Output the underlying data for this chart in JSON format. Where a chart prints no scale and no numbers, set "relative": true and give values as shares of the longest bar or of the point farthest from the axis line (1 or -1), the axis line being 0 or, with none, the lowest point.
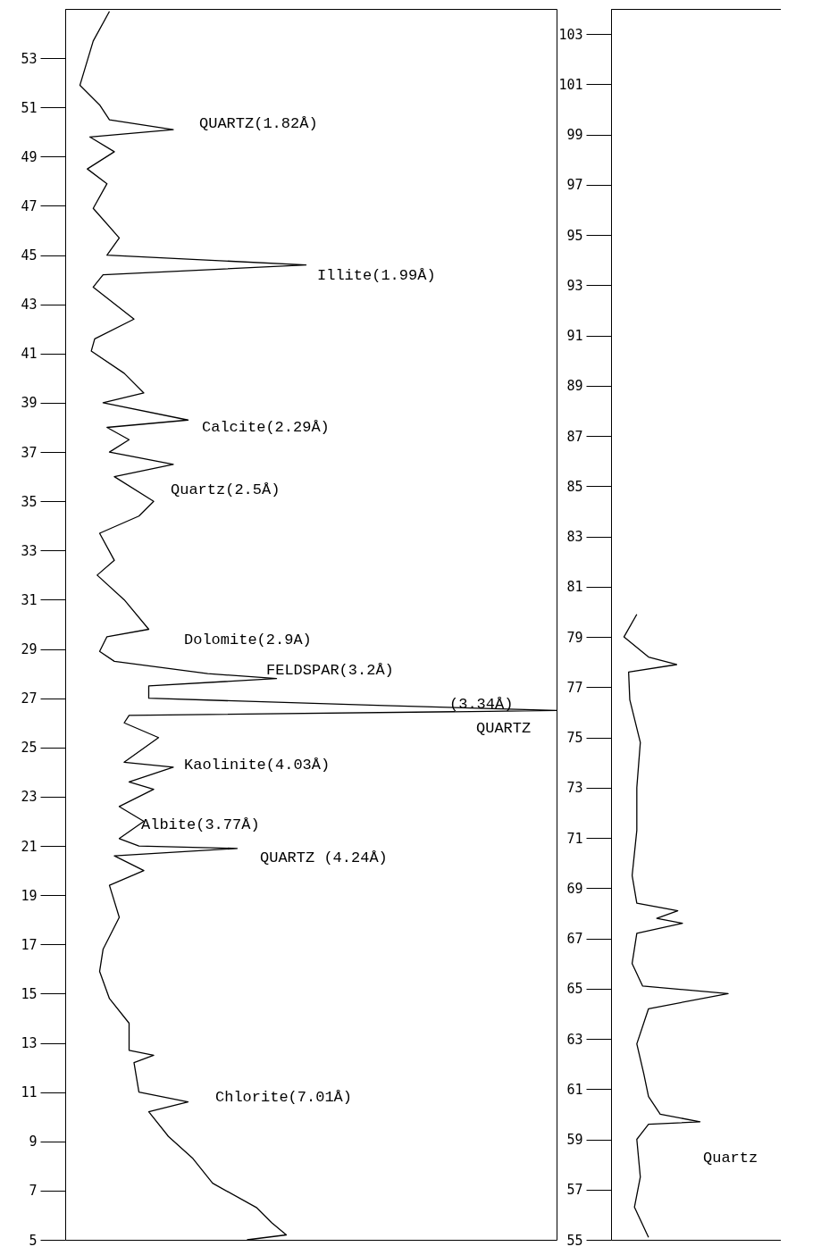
{
  "chart_data": [
    {
      "type": "line",
      "orientation": "horizontal",
      "relative": true,
      "ylim": [
        5,
        55
      ],
      "yticks": [
        5,
        7,
        9,
        11,
        13,
        15,
        17,
        19,
        21,
        23,
        25,
        27,
        29,
        31,
        33,
        35,
        37,
        39,
        41,
        43,
        45,
        47,
        49,
        51,
        53
      ],
      "x": [
        5.0,
        5.2,
        5.7,
        6.3,
        7.3,
        8.3,
        9.2,
        10.2,
        10.6,
        11.0,
        12.2,
        12.5,
        12.7,
        13.8,
        14.8,
        15.9,
        16.8,
        18.1,
        19.4,
        20.0,
        20.6,
        20.9,
        21.0,
        21.3,
        22.0,
        22.6,
        23.3,
        23.6,
        24.2,
        24.4,
        25.4,
        26.0,
        26.3,
        26.5,
        26.7,
        27.0,
        27.5,
        27.8,
        28.0,
        28.5,
        28.9,
        29.5,
        29.8,
        31.0,
        32.0,
        32.6,
        33.7,
        34.4,
        35.0,
        36.0,
        36.5,
        37.0,
        37.5,
        38.0,
        38.3,
        39.0,
        39.4,
        40.2,
        41.1,
        41.6,
        42.4,
        43.7,
        44.2,
        44.6,
        45.0,
        45.7,
        46.9,
        47.9,
        48.5,
        49.2,
        49.8,
        50.1,
        50.5,
        51.1,
        51.9,
        53.7,
        54.9
      ],
      "values": [
        0.37,
        0.45,
        0.42,
        0.39,
        0.3,
        0.26,
        0.21,
        0.17,
        0.25,
        0.15,
        0.14,
        0.18,
        0.13,
        0.13,
        0.09,
        0.07,
        0.077,
        0.11,
        0.09,
        0.16,
        0.1,
        0.35,
        0.15,
        0.11,
        0.16,
        0.11,
        0.18,
        0.13,
        0.22,
        0.12,
        0.19,
        0.12,
        0.13,
        1.0,
        0.65,
        0.17,
        0.17,
        0.43,
        0.29,
        0.1,
        0.07,
        0.085,
        0.17,
        0.12,
        0.065,
        0.1,
        0.07,
        0.15,
        0.18,
        0.1,
        0.22,
        0.09,
        0.13,
        0.085,
        0.25,
        0.077,
        0.16,
        0.12,
        0.053,
        0.06,
        0.14,
        0.057,
        0.077,
        0.49,
        0.085,
        0.11,
        0.057,
        0.085,
        0.045,
        0.1,
        0.05,
        0.22,
        0.09,
        0.07,
        0.03,
        0.057,
        0.09
      ],
      "annotations": [
        "QUARTZ(1.82Å)",
        "Illite(1.99Å)",
        "Calcite(2.29Å)",
        "Quartz(2.5Å)",
        "Dolomite(2.9A)",
        "FELDSPAR(3.2Å)",
        "(3.34Å)",
        "QUARTZ",
        "Kaolinite(4.03Å)",
        "Albite(3.77Å)",
        "QUARTZ  (4.24Å)",
        "Chlorite(7.01Å)"
      ]
    },
    {
      "type": "line",
      "orientation": "horizontal",
      "relative": true,
      "ylim": [
        55,
        104
      ],
      "yticks": [
        55,
        57,
        59,
        61,
        63,
        65,
        67,
        69,
        71,
        73,
        75,
        77,
        79,
        81,
        83,
        85,
        87,
        89,
        91,
        93,
        95,
        97,
        99,
        101,
        103
      ],
      "x": [
        55.1,
        56.3,
        57.5,
        59.0,
        59.6,
        59.7,
        60.0,
        60.7,
        61.6,
        62.8,
        64.2,
        64.8,
        65.1,
        66.0,
        67.2,
        67.6,
        67.8,
        68.1,
        68.4,
        69.5,
        71.3,
        73.0,
        74.8,
        76.5,
        77.6,
        77.9,
        78.2,
        79.0,
        79.9
      ],
      "values": [
        0.32,
        0.2,
        0.25,
        0.22,
        0.32,
        0.76,
        0.42,
        0.32,
        0.28,
        0.22,
        0.32,
        1.0,
        0.27,
        0.18,
        0.22,
        0.61,
        0.39,
        0.57,
        0.22,
        0.18,
        0.22,
        0.22,
        0.25,
        0.16,
        0.15,
        0.56,
        0.32,
        0.11,
        0.22
      ],
      "annotations": [
        "Quartz"
      ]
    }
  ]
}
